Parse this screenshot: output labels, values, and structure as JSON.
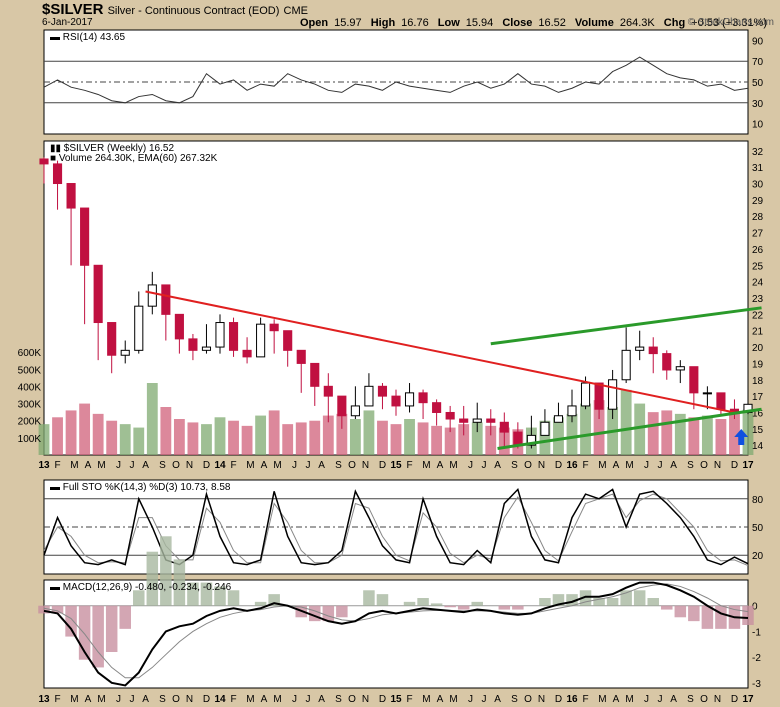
{
  "header": {
    "symbol": "$SILVER",
    "name": "Silver - Continuous Contract (EOD)",
    "exchange": "CME",
    "date": "6-Jan-2017",
    "open_label": "Open",
    "open": "15.97",
    "high_label": "High",
    "high": "16.76",
    "low_label": "Low",
    "low": "15.94",
    "close_label": "Close",
    "close": "16.52",
    "volume_label": "Volume",
    "volume": "264.3K",
    "chg_label": "Chg",
    "chg": "+0.53 (+3.31%)",
    "brand": "© StockCharts.com"
  },
  "colors": {
    "up": "#7faa70",
    "down": "#d0607a",
    "redline": "#e02020",
    "greenline": "#2a9a2a",
    "arrow": "#1050e0",
    "panel": "#ffffff"
  },
  "chart_data": [
    {
      "type": "line",
      "panel": "rsi",
      "legend": "RSI(14) 43.65",
      "ylim": [
        0,
        100
      ],
      "yticks": [
        10,
        30,
        50,
        70,
        90
      ],
      "reference_lines": [
        30,
        50,
        70
      ],
      "x": [
        0,
        4,
        8,
        12,
        16,
        20,
        24,
        28,
        32,
        36,
        40,
        44,
        48,
        52,
        56,
        60,
        64,
        68,
        72,
        76,
        80,
        84,
        88,
        92,
        96,
        100,
        104,
        108,
        112,
        116,
        120,
        124,
        128,
        132,
        136,
        140,
        144,
        148,
        152,
        156,
        160,
        164,
        168,
        172,
        176,
        180,
        184,
        188,
        192,
        196,
        200,
        204,
        208
      ],
      "values": [
        45,
        52,
        45,
        42,
        38,
        32,
        30,
        36,
        38,
        32,
        30,
        36,
        58,
        48,
        52,
        42,
        48,
        46,
        58,
        52,
        48,
        42,
        40,
        48,
        46,
        42,
        50,
        46,
        44,
        42,
        40,
        46,
        50,
        44,
        48,
        58,
        48,
        46,
        40,
        44,
        50,
        48,
        60,
        66,
        74,
        66,
        58,
        54,
        52,
        46,
        48,
        42,
        44
      ]
    },
    {
      "type": "candlestick",
      "panel": "price",
      "legend": "$SILVER (Weekly) 16.52",
      "volume_legend": "Volume 264.30K, EMA(60) 267.32K",
      "ylim": [
        13.4,
        32.6
      ],
      "yticks": [
        14,
        15,
        16,
        17,
        18,
        19,
        20,
        21,
        22,
        23,
        24,
        25,
        26,
        27,
        28,
        29,
        30,
        31,
        32
      ],
      "volume_ticks": [
        "100K",
        "200K",
        "300K",
        "400K",
        "500K",
        "600K"
      ],
      "x": [
        0,
        4,
        8,
        12,
        16,
        20,
        24,
        28,
        32,
        36,
        40,
        44,
        48,
        52,
        56,
        60,
        64,
        68,
        72,
        76,
        80,
        84,
        88,
        92,
        96,
        100,
        104,
        108,
        112,
        116,
        120,
        124,
        128,
        132,
        136,
        140,
        144,
        148,
        152,
        156,
        160,
        164,
        168,
        172,
        176,
        180,
        184,
        188,
        192,
        196,
        200,
        204,
        208
      ],
      "close": [
        31.2,
        30.0,
        28.5,
        25.0,
        21.5,
        19.5,
        19.8,
        22.5,
        23.8,
        22.0,
        20.5,
        19.8,
        20.0,
        21.5,
        19.8,
        19.4,
        21.4,
        21.0,
        19.8,
        19.0,
        17.6,
        17.0,
        15.8,
        16.4,
        17.6,
        17.0,
        16.4,
        17.2,
        16.6,
        16.0,
        15.6,
        15.4,
        15.6,
        15.4,
        14.8,
        14.0,
        14.6,
        15.4,
        15.8,
        16.4,
        17.8,
        16.2,
        18.0,
        19.8,
        20.0,
        19.6,
        18.6,
        18.8,
        17.2,
        17.2,
        16.2,
        16.0,
        16.5
      ],
      "high": [
        31.6,
        31.4,
        29.6,
        27.0,
        23.4,
        21.2,
        20.4,
        23.4,
        24.6,
        23.0,
        21.5,
        20.8,
        21.4,
        22.0,
        21.8,
        20.6,
        21.8,
        21.7,
        20.8,
        19.8,
        18.6,
        18.4,
        17.0,
        17.6,
        18.4,
        17.8,
        17.4,
        17.8,
        17.4,
        16.8,
        16.4,
        16.4,
        16.6,
        16.2,
        16.0,
        15.4,
        15.8,
        16.2,
        16.6,
        17.4,
        18.2,
        17.8,
        18.6,
        21.2,
        21.0,
        20.6,
        19.8,
        19.2,
        18.4,
        17.6,
        17.0,
        16.8,
        16.8
      ],
      "low": [
        30.0,
        28.4,
        25.0,
        21.4,
        19.2,
        18.4,
        19.0,
        19.6,
        22.0,
        20.4,
        19.6,
        19.2,
        19.6,
        19.6,
        19.4,
        19.0,
        19.4,
        19.6,
        18.8,
        17.2,
        16.4,
        15.4,
        15.0,
        15.6,
        16.6,
        16.2,
        15.8,
        16.0,
        15.6,
        15.2,
        14.8,
        14.6,
        14.8,
        14.6,
        13.8,
        13.8,
        13.8,
        14.6,
        15.4,
        15.4,
        16.2,
        15.6,
        15.6,
        17.8,
        19.2,
        18.4,
        18.0,
        17.8,
        16.2,
        16.2,
        15.8,
        15.6,
        15.9
      ],
      "volume": [
        180,
        220,
        260,
        300,
        240,
        200,
        180,
        160,
        420,
        280,
        210,
        190,
        180,
        220,
        200,
        170,
        230,
        260,
        180,
        190,
        200,
        230,
        240,
        210,
        260,
        200,
        180,
        210,
        190,
        170,
        160,
        180,
        190,
        170,
        160,
        150,
        160,
        200,
        220,
        240,
        300,
        320,
        280,
        380,
        300,
        250,
        260,
        240,
        220,
        230,
        210,
        250,
        264
      ],
      "resistance_line": [
        [
          30,
          23.4
        ],
        [
          204,
          16.0
        ]
      ],
      "channel_upper": [
        [
          132,
          20.2
        ],
        [
          212,
          22.4
        ]
      ],
      "channel_lower": [
        [
          134,
          13.8
        ],
        [
          212,
          16.2
        ]
      ],
      "arrow_at": [
        206,
        14.5
      ]
    },
    {
      "type": "line",
      "panel": "stochastic",
      "legend": "Full STO %K(14,3) %D(3) 10.73, 8.58",
      "ylim": [
        0,
        100
      ],
      "yticks": [
        20,
        50,
        80
      ],
      "reference_lines": [
        20,
        50,
        80
      ],
      "x": [
        0,
        4,
        8,
        12,
        16,
        20,
        24,
        28,
        32,
        36,
        40,
        44,
        48,
        52,
        56,
        60,
        64,
        68,
        72,
        76,
        80,
        84,
        88,
        92,
        96,
        100,
        104,
        108,
        112,
        116,
        120,
        124,
        128,
        132,
        136,
        140,
        144,
        148,
        152,
        156,
        160,
        164,
        168,
        172,
        176,
        180,
        184,
        188,
        192,
        196,
        200,
        204,
        208
      ],
      "k": [
        20,
        60,
        30,
        12,
        10,
        15,
        10,
        80,
        50,
        15,
        10,
        20,
        85,
        40,
        12,
        10,
        15,
        88,
        40,
        12,
        10,
        12,
        25,
        88,
        60,
        30,
        15,
        12,
        80,
        40,
        12,
        10,
        25,
        12,
        75,
        90,
        40,
        15,
        12,
        60,
        85,
        80,
        90,
        50,
        85,
        88,
        75,
        60,
        40,
        15,
        10,
        18,
        11
      ],
      "d": [
        25,
        50,
        40,
        20,
        12,
        13,
        12,
        60,
        60,
        30,
        15,
        15,
        70,
        55,
        25,
        12,
        12,
        75,
        55,
        25,
        12,
        12,
        20,
        75,
        70,
        40,
        20,
        14,
        65,
        50,
        22,
        12,
        20,
        16,
        60,
        82,
        55,
        25,
        14,
        45,
        75,
        80,
        85,
        60,
        78,
        85,
        80,
        65,
        50,
        25,
        14,
        15,
        9
      ]
    },
    {
      "type": "line",
      "panel": "macd",
      "legend": "MACD(12,26,9) -0.480, -0.234, -0.246",
      "ylim": [
        -3.2,
        1.0
      ],
      "yticks": [
        -3,
        -2,
        -1,
        0
      ],
      "x": [
        0,
        4,
        8,
        12,
        16,
        20,
        24,
        28,
        32,
        36,
        40,
        44,
        48,
        52,
        56,
        60,
        64,
        68,
        72,
        76,
        80,
        84,
        88,
        92,
        96,
        100,
        104,
        108,
        112,
        116,
        120,
        124,
        128,
        132,
        136,
        140,
        144,
        148,
        152,
        156,
        160,
        164,
        168,
        172,
        176,
        180,
        184,
        188,
        192,
        196,
        200,
        204,
        208
      ],
      "macd": [
        -0.2,
        -0.3,
        -0.9,
        -1.8,
        -2.6,
        -3.0,
        -3.1,
        -2.6,
        -1.7,
        -1.0,
        -0.8,
        -0.7,
        -0.4,
        -0.2,
        -0.1,
        -0.2,
        -0.1,
        0.1,
        0.0,
        -0.2,
        -0.4,
        -0.6,
        -0.7,
        -0.6,
        -0.3,
        -0.2,
        -0.3,
        -0.2,
        -0.1,
        -0.15,
        -0.2,
        -0.25,
        -0.15,
        -0.2,
        -0.3,
        -0.35,
        -0.3,
        -0.1,
        0.05,
        0.15,
        0.35,
        0.35,
        0.45,
        0.7,
        0.9,
        0.9,
        0.8,
        0.6,
        0.35,
        0.0,
        -0.3,
        -0.45,
        -0.48
      ],
      "signal": [
        -0.1,
        -0.2,
        -0.5,
        -1.1,
        -1.8,
        -2.4,
        -2.8,
        -2.8,
        -2.4,
        -1.9,
        -1.4,
        -1.0,
        -0.7,
        -0.45,
        -0.3,
        -0.2,
        -0.15,
        -0.05,
        0.0,
        -0.05,
        -0.2,
        -0.4,
        -0.55,
        -0.6,
        -0.5,
        -0.35,
        -0.3,
        -0.25,
        -0.2,
        -0.18,
        -0.18,
        -0.2,
        -0.2,
        -0.2,
        -0.25,
        -0.3,
        -0.3,
        -0.2,
        -0.1,
        0.0,
        0.15,
        0.25,
        0.35,
        0.5,
        0.7,
        0.8,
        0.85,
        0.75,
        0.55,
        0.3,
        0.0,
        -0.15,
        -0.23
      ]
    }
  ],
  "x_axis": [
    {
      "t": 0,
      "label": "13",
      "year": true
    },
    {
      "t": 4,
      "label": "F"
    },
    {
      "t": 9,
      "label": "M"
    },
    {
      "t": 13,
      "label": "A"
    },
    {
      "t": 17,
      "label": "M"
    },
    {
      "t": 22,
      "label": "J"
    },
    {
      "t": 26,
      "label": "J"
    },
    {
      "t": 30,
      "label": "A"
    },
    {
      "t": 35,
      "label": "S"
    },
    {
      "t": 39,
      "label": "O"
    },
    {
      "t": 43,
      "label": "N"
    },
    {
      "t": 48,
      "label": "D"
    },
    {
      "t": 52,
      "label": "14",
      "year": true
    },
    {
      "t": 56,
      "label": "F"
    },
    {
      "t": 61,
      "label": "M"
    },
    {
      "t": 65,
      "label": "A"
    },
    {
      "t": 69,
      "label": "M"
    },
    {
      "t": 74,
      "label": "J"
    },
    {
      "t": 78,
      "label": "J"
    },
    {
      "t": 82,
      "label": "A"
    },
    {
      "t": 87,
      "label": "S"
    },
    {
      "t": 91,
      "label": "O"
    },
    {
      "t": 95,
      "label": "N"
    },
    {
      "t": 100,
      "label": "D"
    },
    {
      "t": 104,
      "label": "15",
      "year": true
    },
    {
      "t": 108,
      "label": "F"
    },
    {
      "t": 113,
      "label": "M"
    },
    {
      "t": 117,
      "label": "A"
    },
    {
      "t": 121,
      "label": "M"
    },
    {
      "t": 126,
      "label": "J"
    },
    {
      "t": 130,
      "label": "J"
    },
    {
      "t": 134,
      "label": "A"
    },
    {
      "t": 139,
      "label": "S"
    },
    {
      "t": 143,
      "label": "O"
    },
    {
      "t": 147,
      "label": "N"
    },
    {
      "t": 152,
      "label": "D"
    },
    {
      "t": 156,
      "label": "16",
      "year": true
    },
    {
      "t": 160,
      "label": "F"
    },
    {
      "t": 165,
      "label": "M"
    },
    {
      "t": 169,
      "label": "A"
    },
    {
      "t": 173,
      "label": "M"
    },
    {
      "t": 178,
      "label": "J"
    },
    {
      "t": 182,
      "label": "J"
    },
    {
      "t": 186,
      "label": "A"
    },
    {
      "t": 191,
      "label": "S"
    },
    {
      "t": 195,
      "label": "O"
    },
    {
      "t": 199,
      "label": "N"
    },
    {
      "t": 204,
      "label": "D"
    },
    {
      "t": 208,
      "label": "17",
      "year": true
    }
  ]
}
